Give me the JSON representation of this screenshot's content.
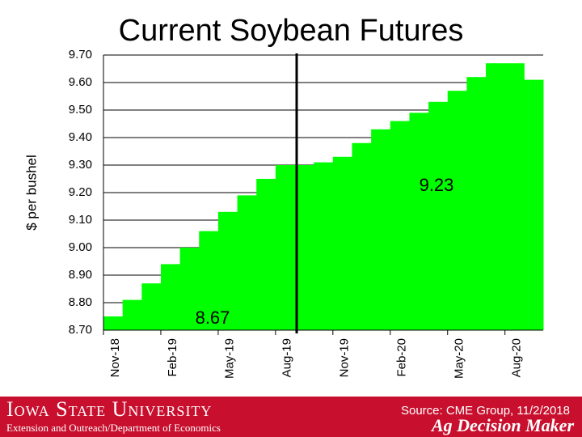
{
  "chart_data": {
    "type": "step-area",
    "title": "Current Soybean Futures",
    "y_label": "$ per bushel",
    "categories": [
      "Nov-18",
      null,
      null,
      "Feb-19",
      null,
      null,
      "May-19",
      null,
      null,
      "Aug-19",
      null,
      null,
      "Nov-19",
      null,
      null,
      "Feb-20",
      null,
      null,
      "May-20",
      null,
      null,
      "Aug-20",
      null
    ],
    "values": [
      8.75,
      8.81,
      8.87,
      8.94,
      9.0,
      9.06,
      9.13,
      9.19,
      9.25,
      9.3,
      9.3,
      9.31,
      9.33,
      9.38,
      9.43,
      9.46,
      9.49,
      9.53,
      9.57,
      9.62,
      9.67,
      9.67,
      9.61
    ],
    "color": "#00ff00",
    "ylim": [
      8.7,
      9.7
    ],
    "yticks": [
      {
        "value": 8.7,
        "label": "8.70"
      },
      {
        "value": 8.8,
        "label": "8.80"
      },
      {
        "value": 8.9,
        "label": "8.90"
      },
      {
        "value": 9.0,
        "label": "9.00"
      },
      {
        "value": 9.1,
        "label": "9.10"
      },
      {
        "value": 9.2,
        "label": "9.20"
      },
      {
        "value": 9.3,
        "label": "9.30"
      },
      {
        "value": 9.4,
        "label": "9.40"
      },
      {
        "value": 9.5,
        "label": "9.50"
      },
      {
        "value": 9.6,
        "label": "9.60"
      },
      {
        "value": 9.7,
        "label": "9.70"
      }
    ],
    "grid": true,
    "annotations": [
      "9.23",
      "8.67"
    ]
  },
  "footer": {
    "university": "Iowa State University",
    "department": "Extension and Outreach/Department of Economics",
    "source": "Source: CME Group, 11/2/2018",
    "brand": "Ag Decision Maker"
  }
}
